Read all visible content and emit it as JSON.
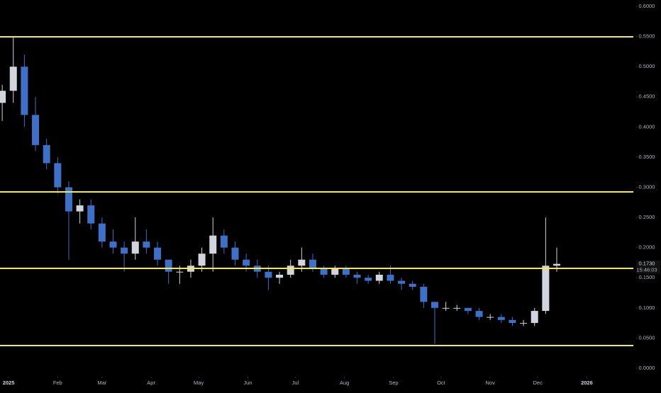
{
  "chart_data": {
    "type": "candlestick",
    "x": [
      -4,
      3,
      10,
      17,
      24,
      31,
      38,
      45,
      52,
      59,
      66,
      73,
      80,
      87,
      94,
      101,
      108,
      115,
      122,
      129,
      136,
      143,
      150,
      157,
      164,
      171,
      178,
      185,
      192,
      199,
      206,
      213,
      220,
      227,
      234,
      241,
      248,
      255,
      262,
      269,
      276,
      283,
      290,
      297,
      304,
      311,
      318,
      325,
      332,
      339,
      346
    ],
    "open": [
      0.44,
      0.46,
      0.5,
      0.42,
      0.37,
      0.34,
      0.3,
      0.26,
      0.27,
      0.24,
      0.21,
      0.2,
      0.19,
      0.21,
      0.2,
      0.18,
      0.16,
      0.16,
      0.17,
      0.19,
      0.22,
      0.2,
      0.18,
      0.17,
      0.16,
      0.15,
      0.155,
      0.17,
      0.18,
      0.165,
      0.155,
      0.165,
      0.155,
      0.15,
      0.145,
      0.155,
      0.145,
      0.14,
      0.135,
      0.11,
      0.1,
      0.1,
      0.1,
      0.095,
      0.085,
      0.085,
      0.08,
      0.075,
      0.075,
      0.095,
      0.17
    ],
    "high": [
      0.47,
      0.55,
      0.52,
      0.45,
      0.38,
      0.35,
      0.31,
      0.28,
      0.28,
      0.25,
      0.23,
      0.21,
      0.25,
      0.23,
      0.21,
      0.18,
      0.17,
      0.18,
      0.2,
      0.25,
      0.23,
      0.21,
      0.19,
      0.18,
      0.17,
      0.16,
      0.18,
      0.2,
      0.19,
      0.17,
      0.17,
      0.17,
      0.16,
      0.155,
      0.16,
      0.17,
      0.15,
      0.145,
      0.14,
      0.11,
      0.11,
      0.105,
      0.1,
      0.1,
      0.09,
      0.09,
      0.085,
      0.08,
      0.1,
      0.25,
      0.2
    ],
    "low": [
      0.41,
      0.44,
      0.4,
      0.36,
      0.33,
      0.29,
      0.18,
      0.24,
      0.23,
      0.2,
      0.19,
      0.16,
      0.18,
      0.19,
      0.17,
      0.14,
      0.14,
      0.15,
      0.16,
      0.16,
      0.19,
      0.17,
      0.16,
      0.15,
      0.13,
      0.14,
      0.15,
      0.16,
      0.16,
      0.15,
      0.15,
      0.15,
      0.14,
      0.14,
      0.14,
      0.14,
      0.13,
      0.13,
      0.1,
      0.04,
      0.095,
      0.095,
      0.09,
      0.08,
      0.08,
      0.075,
      0.07,
      0.07,
      0.07,
      0.09,
      0.16
    ],
    "close": [
      0.46,
      0.5,
      0.42,
      0.37,
      0.34,
      0.3,
      0.26,
      0.27,
      0.24,
      0.21,
      0.2,
      0.19,
      0.21,
      0.2,
      0.18,
      0.16,
      0.16,
      0.17,
      0.19,
      0.22,
      0.2,
      0.18,
      0.17,
      0.16,
      0.15,
      0.155,
      0.17,
      0.18,
      0.165,
      0.155,
      0.165,
      0.155,
      0.15,
      0.145,
      0.155,
      0.145,
      0.14,
      0.135,
      0.11,
      0.1,
      0.1,
      0.1,
      0.095,
      0.085,
      0.085,
      0.08,
      0.075,
      0.075,
      0.095,
      0.17,
      0.173
    ],
    "up_color": "#d1d4dc",
    "down_color": "#3f6fc6",
    "levels": [
      0.5495,
      0.2924,
      0.1656,
      0.0376
    ],
    "level_color": "#f5e94a",
    "xlim": [
      -5.4,
      393
    ],
    "xticks": [
      {
        "value": 0,
        "label": "2025"
      },
      {
        "value": 31,
        "label": "Feb"
      },
      {
        "value": 59,
        "label": "Mar"
      },
      {
        "value": 90,
        "label": "Apr"
      },
      {
        "value": 120,
        "label": "May"
      },
      {
        "value": 151,
        "label": "Jun"
      },
      {
        "value": 181,
        "label": "Jul"
      },
      {
        "value": 212,
        "label": "Aug"
      },
      {
        "value": 243,
        "label": "Sep"
      },
      {
        "value": 273,
        "label": "Oct"
      },
      {
        "value": 304,
        "label": "Nov"
      },
      {
        "value": 334,
        "label": "Dec"
      },
      {
        "value": 365,
        "label": "2026"
      }
    ],
    "ylim": [
      0,
      0.6
    ],
    "yticks": [
      {
        "value": 0,
        "label": "0.0000"
      },
      {
        "value": 0.05,
        "label": "0.0500"
      },
      {
        "value": 0.1,
        "label": "0.1000"
      },
      {
        "value": 0.15,
        "label": "0.1500"
      },
      {
        "value": 0.2,
        "label": "0.2000"
      },
      {
        "value": 0.25,
        "label": "0.2500"
      },
      {
        "value": 0.3,
        "label": "0.3000"
      },
      {
        "value": 0.35,
        "label": "0.3500"
      },
      {
        "value": 0.4,
        "label": "0.4000"
      },
      {
        "value": 0.45,
        "label": "0.4500"
      },
      {
        "value": 0.5,
        "label": "0.5000"
      },
      {
        "value": 0.55,
        "label": "0.5500"
      },
      {
        "value": 0.6,
        "label": "0.6000"
      }
    ],
    "last_price": {
      "value": 0.173,
      "label": "0.1730",
      "countdown": "15:46:03"
    }
  }
}
